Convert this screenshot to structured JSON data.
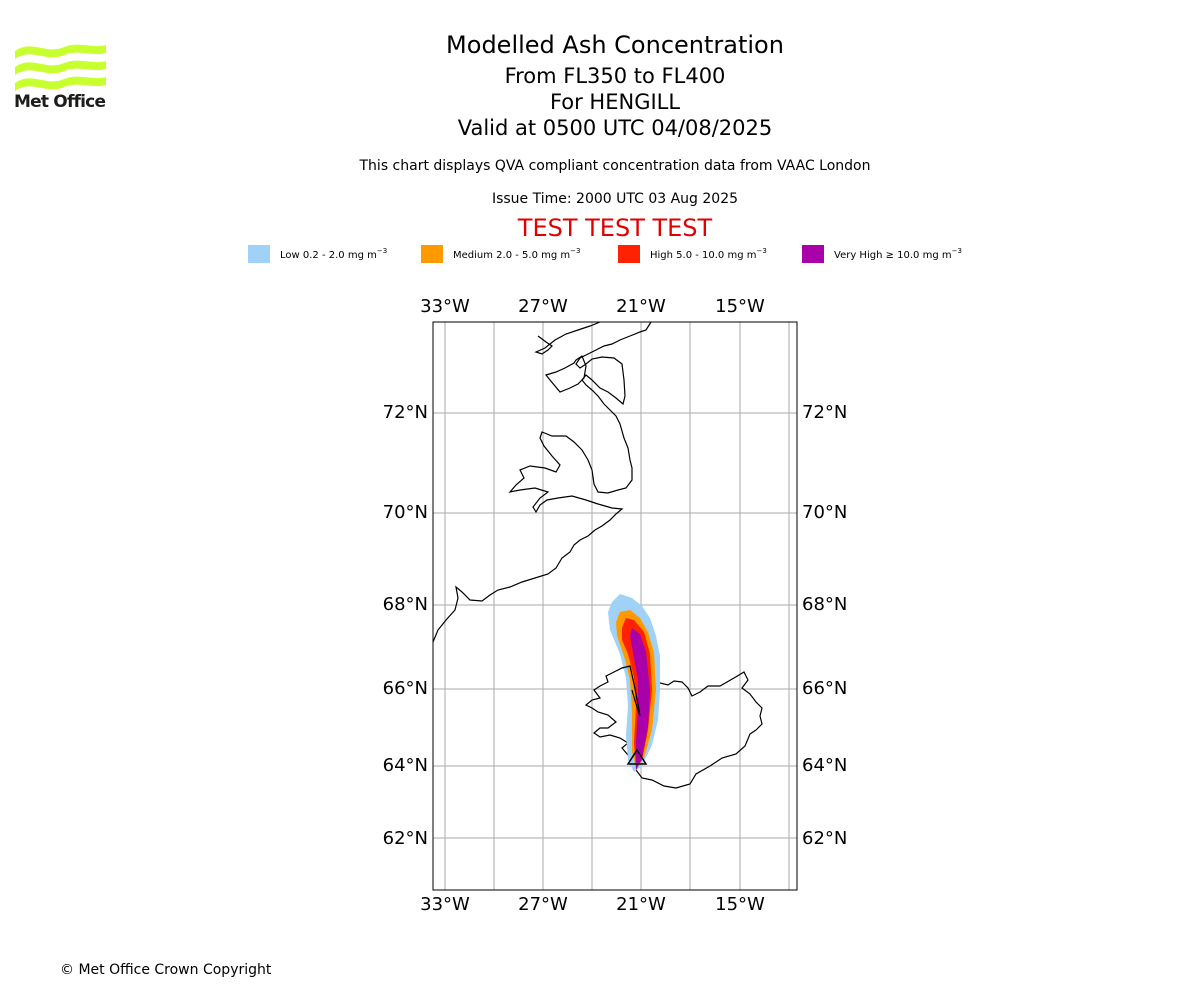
{
  "branding": {
    "logo_text": "Met Office",
    "logo_color": "#c8ff2e"
  },
  "header": {
    "title": "Modelled Ash Concentration",
    "level": "From FL350 to FL400",
    "volcano": "For HENGILL",
    "valid": "Valid at 0500 UTC 04/08/2025",
    "compliance": "This chart displays QVA compliant concentration data from VAAC London",
    "issue_time": "Issue Time: 2000 UTC 03 Aug 2025",
    "test_banner": "TEST TEST TEST"
  },
  "legend": [
    {
      "label_prefix": "Low 0.2 - 2.0 mg m",
      "exp": "−3",
      "color": "#a0d2f8"
    },
    {
      "label_prefix": "Medium 2.0 - 5.0 mg m",
      "exp": "−3",
      "color": "#ff9900"
    },
    {
      "label_prefix": "High 5.0 - 10.0 mg m",
      "exp": "−3",
      "color": "#ff2200"
    },
    {
      "label_prefix": "Very High  ≥  10.0 mg m",
      "exp": "−3",
      "color": "#aa00aa"
    }
  ],
  "map": {
    "projection": "polar-stereographic",
    "grid": true,
    "lon_ticks": [
      "33°W",
      "27°W",
      "21°W",
      "15°W"
    ],
    "lat_ticks": [
      "72°N",
      "70°N",
      "68°N",
      "66°N",
      "64°N",
      "62°N"
    ],
    "volcano_marker": "triangle-icon",
    "ash_plume_levels": [
      "Low",
      "Medium",
      "High",
      "Very High"
    ]
  },
  "footer": {
    "copyright": "© Met Office Crown Copyright"
  }
}
